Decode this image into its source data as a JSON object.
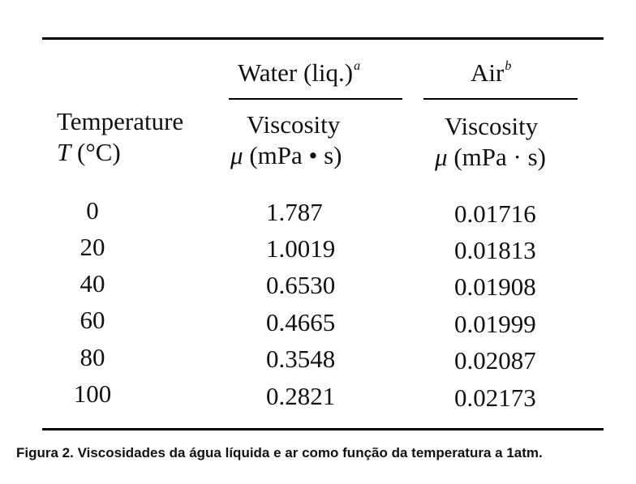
{
  "table": {
    "header": {
      "temperature_line1": "Temperature",
      "temperature_symbol": "T",
      "temperature_unit": "(°C)",
      "water_group": "Water (liq.)",
      "water_footnote": "a",
      "air_group": "Air",
      "air_footnote": "b",
      "viscosity_label": "Viscosity",
      "viscosity_symbol": "μ",
      "viscosity_unit_water": "(mPa • s)",
      "viscosity_unit_air": "(mPa · s)"
    },
    "rows": [
      {
        "temperature": "0",
        "water": "1.787",
        "air": "0.01716"
      },
      {
        "temperature": "20",
        "water": "1.0019",
        "air": "0.01813"
      },
      {
        "temperature": "40",
        "water": "0.6530",
        "air": "0.01908"
      },
      {
        "temperature": "60",
        "water": "0.4665",
        "air": "0.01999"
      },
      {
        "temperature": "80",
        "water": "0.3548",
        "air": "0.02087"
      },
      {
        "temperature": "100",
        "water": "0.2821",
        "air": "0.02173"
      }
    ]
  },
  "caption": "Figura 2. Viscosidades da água líquida e ar como função da temperatura a 1atm."
}
